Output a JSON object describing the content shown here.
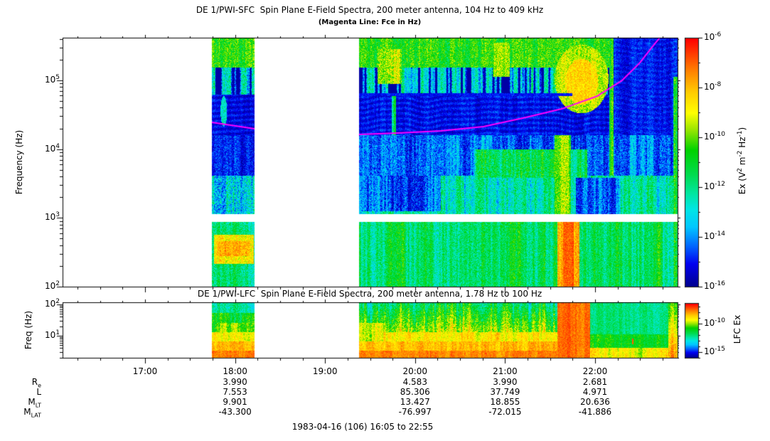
{
  "figure": {
    "background": "#ffffff",
    "frame_color": "#000000",
    "magenta": "#ff00ff",
    "colormap_stops": [
      [
        0.0,
        "#000090"
      ],
      [
        0.09,
        "#0000f0"
      ],
      [
        0.16,
        "#0064ff"
      ],
      [
        0.24,
        "#00c8ff"
      ],
      [
        0.31,
        "#00e6e6"
      ],
      [
        0.38,
        "#00e69b"
      ],
      [
        0.45,
        "#00dc50"
      ],
      [
        0.55,
        "#00d200"
      ],
      [
        0.63,
        "#96e600"
      ],
      [
        0.7,
        "#ffff00"
      ],
      [
        0.79,
        "#ffc800"
      ],
      [
        0.87,
        "#ff8200"
      ],
      [
        0.94,
        "#ff3c00"
      ],
      [
        1.0,
        "#ff0000"
      ]
    ]
  },
  "sfc": {
    "title": "DE 1/PWI-SFC  Spin Plane E-Field Spectra, 200 meter antenna, 104 Hz to 409 kHz",
    "subtitle": "(Magenta Line: Fce in Hz)",
    "y_axis_label": "Frequency (Hz)",
    "y_tick_exponents": [
      5,
      4,
      3,
      2
    ],
    "colorbar_major_exponents": [
      -6,
      -8,
      -10,
      -12,
      -14,
      -16
    ],
    "colorbar_minor_exponents": [
      -7,
      -9,
      -11,
      -13,
      -15
    ],
    "colorbar_label_parts": [
      {
        "t": "Ex (V"
      },
      {
        "s": "2"
      },
      {
        "t": " m"
      },
      {
        "s": "-2"
      },
      {
        "t": " Hz"
      },
      {
        "s": "-1"
      },
      {
        "t": ")"
      }
    ]
  },
  "lfc": {
    "title": "DE 1/PWI-LFC  Spin Plane E-Field Spectra, 200 meter antenna, 1.78 Hz to 100 Hz",
    "y_axis_label": "Freq (Hz)",
    "y_tick_exponents": [
      2,
      1
    ],
    "colorbar_labeled_exponents": [
      -10,
      -15
    ],
    "colorbar_label": "LFC Ex"
  },
  "time_axis": {
    "start": "16:05",
    "end": "22:55",
    "total_minutes": 410,
    "minor_step_minutes": 15,
    "tick_labels": [
      {
        "label": "17:00",
        "minutes": 55
      },
      {
        "label": "18:00",
        "minutes": 115
      },
      {
        "label": "19:00",
        "minutes": 175
      },
      {
        "label": "20:00",
        "minutes": 235
      },
      {
        "label": "21:00",
        "minutes": 295
      },
      {
        "label": "22:00",
        "minutes": 355
      }
    ]
  },
  "ephemeris": {
    "row_labels": [
      {
        "main": "R",
        "sub": "e"
      },
      {
        "main": "L",
        "sub": ""
      },
      {
        "main": "M",
        "sub": "LT"
      },
      {
        "main": "M",
        "sub": "LAT"
      }
    ],
    "columns": [
      {
        "time": "18:00",
        "minutes": 115,
        "values": [
          "3.990",
          "7.553",
          "9.901",
          "-43.300"
        ]
      },
      {
        "time": "20:00",
        "minutes": 235,
        "values": [
          "4.583",
          "85.306",
          "13.427",
          "-76.997"
        ]
      },
      {
        "time": "21:00",
        "minutes": 295,
        "values": [
          "3.990",
          "37.749",
          "18.855",
          "-72.015"
        ]
      },
      {
        "time": "22:00",
        "minutes": 355,
        "values": [
          "2.681",
          "4.971",
          "20.636",
          "-41.886"
        ]
      }
    ]
  },
  "footer": {
    "date_range": "1983-04-16 (106) 16:05 to 22:55"
  },
  "chart_data": [
    {
      "type": "heatmap",
      "title": "DE 1/PWI-SFC  Spin Plane E-Field Spectra, 200 meter antenna, 104 Hz to 409 kHz",
      "subtitle": "(Magenta Line: Fce in Hz)",
      "xlabel": "UT, 1983-04-16, 16:05 to 22:55",
      "ylabel": "Frequency (Hz)",
      "y_scale": "log",
      "y_range_log10_hz": [
        2.0,
        5.62
      ],
      "colorbar": {
        "label": "Ex (V^2 m^-2 Hz^-1)",
        "range_log10": [
          -16,
          -6
        ]
      },
      "data_blocks_minutes": [
        [
          99.5,
          128
        ],
        [
          197.6,
          410
        ]
      ],
      "frequency_gap_log10": [
        2.945,
        3.05
      ],
      "fce_line": {
        "color": "#ff00ff",
        "segments_minutes_log10hz": [
          [
            [
              99.5,
              4.389
            ],
            [
              128,
              4.296
            ]
          ],
          [
            [
              197.6,
              4.213
            ],
            [
              223.7,
              4.234
            ],
            [
              252.2,
              4.265
            ],
            [
              280.6,
              4.327
            ],
            [
              309.0,
              4.461
            ],
            [
              332.7,
              4.585
            ],
            [
              356.4,
              4.771
            ],
            [
              373.0,
              4.999
            ],
            [
              384.9,
              5.257
            ],
            [
              393.4,
              5.495
            ],
            [
              398.1,
              5.619
            ]
          ]
        ]
      },
      "regions": [
        {
          "t0": 0,
          "t1": 410,
          "f0": 2.0,
          "f1": 2.94,
          "b": 0.44,
          "vc": 0.14,
          "vp": 0.1
        },
        {
          "t0": 0,
          "t1": 410,
          "f0": 2.94,
          "f1": 3.61,
          "b": 0.36,
          "vc": 0.16,
          "vp": 0.12
        },
        {
          "t0": 0,
          "t1": 410,
          "f0": 3.61,
          "f1": 4.2,
          "b": 0.17,
          "vc": 0.13,
          "vp": 0.1
        },
        {
          "t0": 0,
          "t1": 410,
          "f0": 4.2,
          "f1": 4.79,
          "b": 0.085,
          "vc": 0.05,
          "vp": 0.05,
          "hs": 0.035
        },
        {
          "t0": 0,
          "t1": 410,
          "f0": 4.79,
          "f1": 5.19,
          "b": 0.32,
          "vc": 0.18,
          "vp": 0.12,
          "sp": 0.5
        },
        {
          "t0": 0,
          "t1": 410,
          "f0": 5.19,
          "f1": 5.62,
          "b": 0.55,
          "vc": 0.09,
          "vp": 0.11
        },
        {
          "t0": 99.5,
          "t1": 128,
          "f0": 4.79,
          "f1": 5.19,
          "b": 0.3,
          "vc": 0.2,
          "vp": 0.14,
          "sp": 0.55
        },
        {
          "t0": 99.5,
          "t1": 128,
          "f0": 3.61,
          "f1": 4.2,
          "b": 0.12,
          "vc": 0.08,
          "vp": 0.08
        },
        {
          "t0": 99.5,
          "t1": 128,
          "f0": 2.94,
          "f1": 3.61,
          "b": 0.3,
          "vc": 0.18,
          "vp": 0.15
        },
        {
          "t0": 101,
          "t1": 127.5,
          "f0": 2.33,
          "f1": 2.76,
          "b": 0.72,
          "vc": 0.07,
          "vp": 0.1
        },
        {
          "t0": 103,
          "t1": 125,
          "f0": 2.44,
          "f1": 2.66,
          "b": 0.81,
          "vc": 0.05,
          "vp": 0.08
        },
        {
          "sh": "e",
          "tc": 107.5,
          "fc": 4.55,
          "tr": 2.2,
          "fr": 0.22,
          "b": 0.33,
          "vp": 0.12
        },
        {
          "t0": 197.6,
          "t1": 252,
          "f0": 3.1,
          "f1": 3.61,
          "b": 0.16,
          "vc": 0.16,
          "vp": 0.1
        },
        {
          "t0": 275,
          "t1": 350,
          "f0": 3.58,
          "f1": 4.0,
          "b": 0.45,
          "vc": 0.14,
          "vp": 0.12
        },
        {
          "t0": 328,
          "t1": 339,
          "f0": 3.05,
          "f1": 4.2,
          "b": 0.6,
          "vc": 0.15,
          "vp": 0.1
        },
        {
          "t0": 219.5,
          "t1": 222.5,
          "f0": 4.2,
          "f1": 4.79,
          "b": 0.34,
          "vc": 0.25,
          "vp": 0.1
        },
        {
          "t0": 342,
          "t1": 372,
          "f0": 3.04,
          "f1": 3.58,
          "b": 0.18,
          "vc": 0.14,
          "vp": 0.1
        },
        {
          "t0": 210,
          "t1": 226,
          "f0": 4.95,
          "f1": 5.45,
          "b": 0.62,
          "vc": 0.12,
          "vp": 0.12
        },
        {
          "t0": 287,
          "t1": 298,
          "f0": 5.05,
          "f1": 5.55,
          "b": 0.62,
          "vc": 0.12,
          "vp": 0.1
        },
        {
          "sh": "e",
          "tc": 346,
          "fc": 5.02,
          "tr": 18,
          "fr": 0.5,
          "b": 0.66,
          "vc": 0.06,
          "vp": 0.1
        },
        {
          "sh": "e",
          "tc": 346,
          "fc": 4.98,
          "tr": 11,
          "fr": 0.33,
          "b": 0.76,
          "vc": 0.04,
          "vp": 0.08
        },
        {
          "t0": 364.5,
          "t1": 367.5,
          "f0": 3.61,
          "f1": 5.35,
          "b": 0.5,
          "vc": 0.2,
          "vp": 0.1
        },
        {
          "t0": 367.5,
          "t1": 410,
          "f0": 4.2,
          "f1": 5.62,
          "b": 0.1,
          "vc": 0.06,
          "vp": 0.06,
          "hs": 0.02
        },
        {
          "t0": 407,
          "t1": 410,
          "f0": 2.0,
          "f1": 5.05,
          "b": 0.42,
          "vc": 0.22,
          "vp": 0.12
        },
        {
          "t0": 330,
          "t1": 344.5,
          "f0": 2.0,
          "f1": 2.94,
          "b": 0.84,
          "vc": 0.08,
          "vp": 0.08
        },
        {
          "t0": 333.5,
          "t1": 341,
          "f0": 2.0,
          "f1": 2.94,
          "b": 0.92,
          "vc": 0.05,
          "vp": 0.06
        },
        {
          "t0": 197.6,
          "t1": 340,
          "f0": 4.775,
          "f1": 4.815,
          "b": 0.1,
          "vc": 0.03,
          "vp": 0.04
        },
        {
          "t0": 0,
          "t1": 410,
          "f0": 2.945,
          "f1": 3.05,
          "wh": true
        }
      ]
    },
    {
      "type": "heatmap",
      "title": "DE 1/PWI-LFC  Spin Plane E-Field Spectra, 200 meter antenna, 1.78 Hz to 100 Hz",
      "ylabel": "Freq (Hz)",
      "y_scale": "log",
      "y_range_log10_hz": [
        0.295,
        2.068
      ],
      "colorbar": {
        "label": "LFC Ex",
        "labeled_ticks_log10": [
          -10,
          -15
        ]
      },
      "data_blocks_minutes": [
        [
          99.5,
          128
        ],
        [
          197.6,
          410
        ]
      ],
      "regions": [
        {
          "t0": 0,
          "t1": 410,
          "f0": 1.72,
          "f1": 2.07,
          "b": 0.4,
          "vc": 0.13,
          "vp": 0.09
        },
        {
          "t0": 0,
          "t1": 410,
          "f0": 1.42,
          "f1": 1.72,
          "b": 0.52,
          "vc": 0.13,
          "vp": 0.09
        },
        {
          "t0": 0,
          "t1": 410,
          "f0": 1.12,
          "f1": 1.42,
          "b": 0.62,
          "vc": 0.12,
          "vp": 0.08
        },
        {
          "t0": 0,
          "t1": 410,
          "f0": 0.82,
          "f1": 1.12,
          "b": 0.72,
          "vc": 0.1,
          "vp": 0.07
        },
        {
          "t0": 0,
          "t1": 410,
          "f0": 0.52,
          "f1": 0.82,
          "b": 0.8,
          "vc": 0.07,
          "vp": 0.06
        },
        {
          "t0": 0,
          "t1": 410,
          "f0": 0.295,
          "f1": 0.52,
          "b": 0.87,
          "vc": 0.05,
          "vp": 0.05
        },
        {
          "t0": 197.6,
          "t1": 330,
          "f0": 1.12,
          "f1": 2.07,
          "g": [
            0.42,
            0.64
          ],
          "vc": 0.2,
          "vp": 0.12
        },
        {
          "t0": 197.6,
          "t1": 214,
          "f0": 0.82,
          "f1": 1.42,
          "b": 0.7,
          "vc": 0.12,
          "vp": 0.08
        },
        {
          "t0": 330,
          "t1": 351.5,
          "f0": 0.295,
          "f1": 2.07,
          "b": 0.89,
          "vc": 0.04,
          "vp": 0.05
        },
        {
          "t0": 351.5,
          "t1": 404,
          "f0": 1.05,
          "f1": 2.07,
          "b": 0.4,
          "vc": 0.08,
          "vp": 0.07
        },
        {
          "t0": 351.5,
          "t1": 404,
          "f0": 0.62,
          "f1": 1.05,
          "b": 0.53,
          "vc": 0.09,
          "vp": 0.07
        },
        {
          "t0": 351.5,
          "t1": 404,
          "f0": 0.295,
          "f1": 0.62,
          "b": 0.7,
          "vc": 0.11,
          "vp": 0.07
        },
        {
          "t0": 404,
          "t1": 410,
          "f0": 0.295,
          "f1": 2.07,
          "g": [
            0.55,
            0.85
          ],
          "vc": 0.15,
          "vp": 0.08
        },
        {
          "t0": 379.6,
          "t1": 380.6,
          "f0": 0.72,
          "f1": 0.92,
          "b": 0.9,
          "vc": 0.02,
          "vp": 0.04
        }
      ]
    }
  ]
}
